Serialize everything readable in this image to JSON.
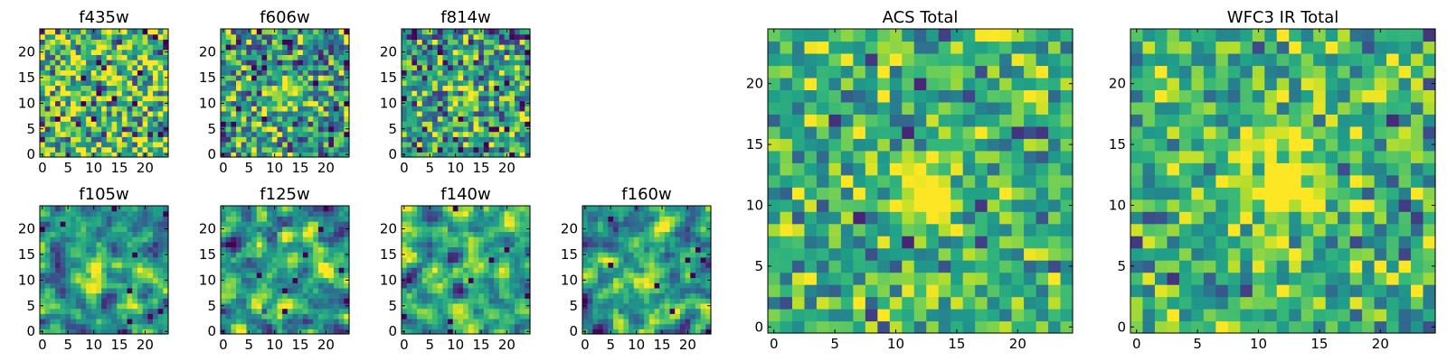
{
  "colormap": "viridis",
  "chart_data": [
    {
      "type": "heatmap",
      "title": "f435w",
      "grid": false,
      "xlim": [
        0,
        24
      ],
      "ylim": [
        0,
        24
      ],
      "xticks": [
        "0",
        "5",
        "10",
        "15",
        "20"
      ],
      "yticks": [
        "0",
        "5",
        "10",
        "15",
        "20"
      ],
      "seed": 11,
      "noise": 0.55,
      "bias": 0.2
    },
    {
      "type": "heatmap",
      "title": "f606w",
      "grid": false,
      "xlim": [
        0,
        24
      ],
      "ylim": [
        0,
        24
      ],
      "xticks": [
        "0",
        "5",
        "10",
        "15",
        "20"
      ],
      "yticks": [
        "0",
        "5",
        "10",
        "15",
        "20"
      ],
      "seed": 23,
      "noise": 0.5,
      "bias": 0.05,
      "blob": {
        "x": 12,
        "y": 12,
        "r": 2.0,
        "amp": 0.45
      }
    },
    {
      "type": "heatmap",
      "title": "f814w",
      "grid": false,
      "xlim": [
        0,
        24
      ],
      "ylim": [
        0,
        24
      ],
      "xticks": [
        "0",
        "5",
        "10",
        "15",
        "20"
      ],
      "yticks": [
        "0",
        "5",
        "10",
        "15",
        "20"
      ],
      "seed": 37,
      "noise": 0.5,
      "bias": 0.05,
      "blob": {
        "x": 12,
        "y": 12,
        "r": 1.6,
        "amp": 0.55
      }
    },
    {
      "type": "heatmap",
      "title": "f105w",
      "grid": false,
      "xlim": [
        0,
        24
      ],
      "ylim": [
        0,
        24
      ],
      "xticks": [
        "0",
        "5",
        "10",
        "15",
        "20"
      ],
      "yticks": [
        "0",
        "5",
        "10",
        "15",
        "20"
      ],
      "seed": 41,
      "noise": 0.5,
      "bias": 0.0,
      "smooth": true,
      "blob": {
        "x": 11,
        "y": 12,
        "r": 3.0,
        "amp": 0.35
      }
    },
    {
      "type": "heatmap",
      "title": "f125w",
      "grid": false,
      "xlim": [
        0,
        24
      ],
      "ylim": [
        0,
        24
      ],
      "xticks": [
        "0",
        "5",
        "10",
        "15",
        "20"
      ],
      "yticks": [
        "0",
        "5",
        "10",
        "15",
        "20"
      ],
      "seed": 53,
      "noise": 0.5,
      "bias": 0.05,
      "smooth": true,
      "blob": {
        "x": 8,
        "y": 5,
        "r": 1.8,
        "amp": 0.4
      }
    },
    {
      "type": "heatmap",
      "title": "f140w",
      "grid": false,
      "xlim": [
        0,
        24
      ],
      "ylim": [
        0,
        24
      ],
      "xticks": [
        "0",
        "5",
        "10",
        "15",
        "20"
      ],
      "yticks": [
        "0",
        "5",
        "10",
        "15",
        "20"
      ],
      "seed": 67,
      "noise": 0.5,
      "bias": 0.1,
      "smooth": true
    },
    {
      "type": "heatmap",
      "title": "f160w",
      "grid": false,
      "xlim": [
        0,
        24
      ],
      "ylim": [
        0,
        24
      ],
      "xticks": [
        "0",
        "5",
        "10",
        "15",
        "20"
      ],
      "yticks": [
        "0",
        "5",
        "10",
        "15",
        "20"
      ],
      "seed": 79,
      "noise": 0.5,
      "bias": 0.05,
      "smooth": true,
      "blob": {
        "x": 12,
        "y": 10,
        "r": 2.5,
        "amp": 0.3
      }
    },
    {
      "type": "heatmap",
      "title": "ACS Total",
      "grid": false,
      "xlim": [
        0,
        24
      ],
      "ylim": [
        0,
        24
      ],
      "xticks": [
        "0",
        "5",
        "10",
        "15",
        "20"
      ],
      "yticks": [
        "0",
        "5",
        "10",
        "15",
        "20"
      ],
      "seed": 97,
      "noise": 0.35,
      "bias": 0.15,
      "blob": {
        "x": 12.5,
        "y": 11,
        "r": 1.5,
        "amp": 0.8
      }
    },
    {
      "type": "heatmap",
      "title": "WFC3 IR Total",
      "grid": false,
      "xlim": [
        0,
        24
      ],
      "ylim": [
        0,
        24
      ],
      "xticks": [
        "0",
        "5",
        "10",
        "15",
        "20"
      ],
      "yticks": [
        "0",
        "5",
        "10",
        "15",
        "20"
      ],
      "seed": 113,
      "noise": 0.35,
      "bias": 0.15,
      "blob": {
        "x": 12,
        "y": 12,
        "r": 2.2,
        "amp": 0.6
      }
    }
  ]
}
